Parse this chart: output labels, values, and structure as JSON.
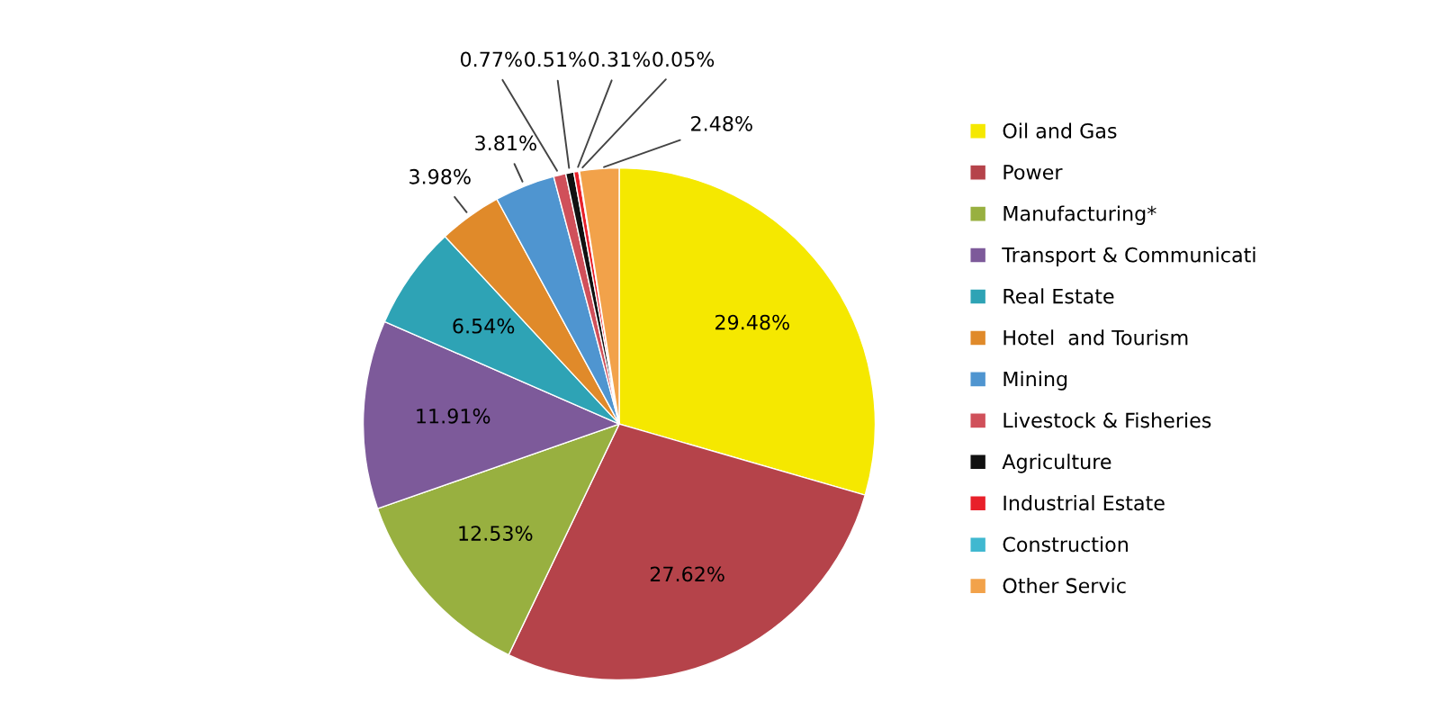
{
  "chart_data": {
    "type": "pie",
    "categories": [
      "Oil and Gas",
      "Power",
      "Manufacturing*",
      "Transport & Communicati",
      "Real Estate",
      "Hotel  and Tourism",
      "Mining",
      "Livestock & Fisheries",
      "Agriculture",
      "Industrial Estate",
      "Construction",
      "Other Servic"
    ],
    "values": [
      29.48,
      27.62,
      12.53,
      11.91,
      6.54,
      3.98,
      3.81,
      0.77,
      0.51,
      0.31,
      0.05,
      2.48
    ],
    "value_labels": [
      "29.48%",
      "27.62%",
      "12.53%",
      "11.91%",
      "6.54%",
      "3.98%",
      "3.81%",
      "0.77%",
      "0.51%",
      "0.31%",
      "0.05%",
      "2.48%"
    ],
    "colors": [
      "#f5e800",
      "#b5434a",
      "#98b040",
      "#7d5a9a",
      "#2ea3b5",
      "#e08a2a",
      "#4f95d0",
      "#d0505a",
      "#111111",
      "#e8202a",
      "#40b8d0",
      "#f2a24a"
    ],
    "legend": "right"
  }
}
